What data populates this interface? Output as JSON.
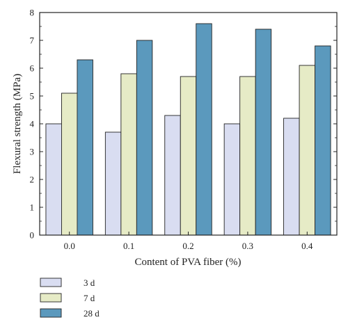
{
  "chart_data": {
    "type": "bar",
    "xlabel": "Content of PVA fiber (%)",
    "ylabel": "Flexural strength (MPa)",
    "categories": [
      "0.0",
      "0.1",
      "0.2",
      "0.3",
      "0.4"
    ],
    "ylim": [
      0,
      8
    ],
    "yticks": [
      "0",
      "1",
      "2",
      "3",
      "4",
      "5",
      "6",
      "7",
      "8"
    ],
    "grid": false,
    "legend_position": "bottom-left",
    "series": [
      {
        "name": "3 d",
        "values": [
          4.0,
          3.7,
          4.3,
          4.0,
          4.2
        ],
        "color": "#d9ddf1"
      },
      {
        "name": "7 d",
        "values": [
          5.1,
          5.8,
          5.7,
          5.7,
          6.1
        ],
        "color": "#e6ebc6"
      },
      {
        "name": "28 d",
        "values": [
          6.3,
          7.0,
          7.6,
          7.4,
          6.8
        ],
        "color": "#5b99bd"
      }
    ]
  }
}
